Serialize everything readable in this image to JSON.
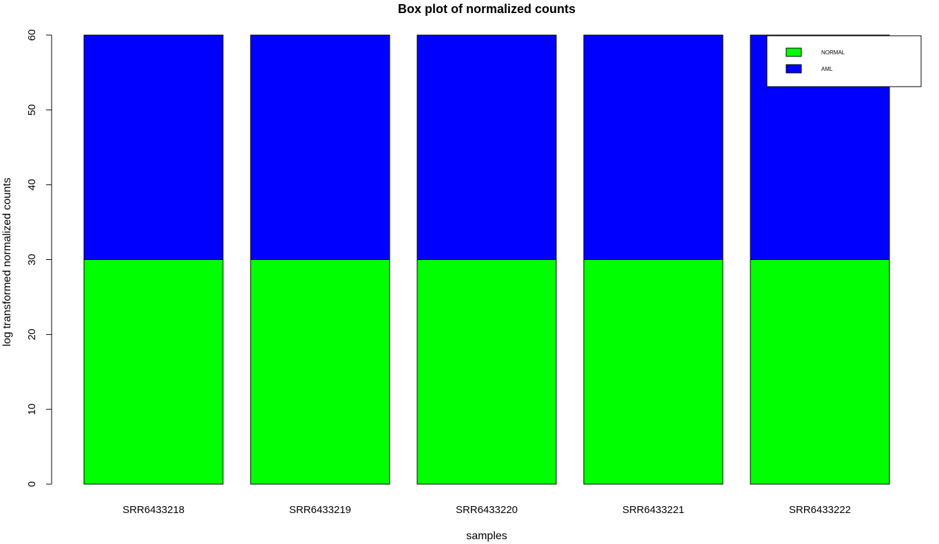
{
  "chart_data": {
    "type": "bar",
    "stacked": true,
    "title": "Box plot of normalized counts",
    "xlabel": "samples",
    "ylabel": "log transformed normalized counts",
    "ylim": [
      0,
      60
    ],
    "yticks": [
      0,
      10,
      20,
      30,
      40,
      50,
      60
    ],
    "categories": [
      "SRR6433218",
      "SRR6433219",
      "SRR6433220",
      "SRR6433221",
      "SRR6433222"
    ],
    "series": [
      {
        "name": "NORMAL",
        "color": "#00ff00",
        "values": [
          30,
          30,
          30,
          30,
          30
        ]
      },
      {
        "name": "AML",
        "color": "#0000ff",
        "values": [
          30,
          30,
          30,
          30,
          30
        ]
      }
    ],
    "legend": {
      "placement": "top-right"
    },
    "grid": false
  }
}
